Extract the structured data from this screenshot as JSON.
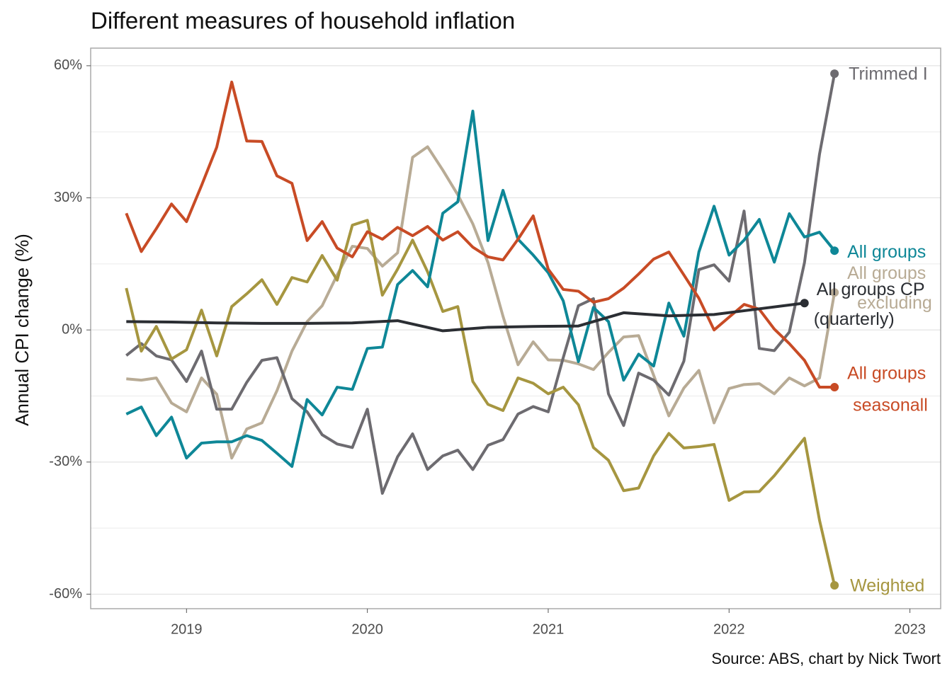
{
  "chart_data": {
    "type": "line",
    "title": "Different measures of household inflation",
    "y_label": "Annual CPI change (%)",
    "caption": "Source: ABS, chart by Nick Twort",
    "xlim": [
      2018.47,
      2023.17
    ],
    "xticks": [
      2019,
      2020,
      2021,
      2022,
      2023
    ],
    "ylim": [
      -63.3,
      64
    ],
    "yticks": [
      {
        "value": 60,
        "label": "60%"
      },
      {
        "value": 30,
        "label": "30%"
      },
      {
        "value": 0,
        "label": "0%"
      },
      {
        "value": -30,
        "label": "-30%"
      },
      {
        "value": -60,
        "label": "-60%"
      }
    ],
    "yminor": [
      45,
      15,
      -15,
      -45
    ],
    "grid": true,
    "series": [
      {
        "name": [
          "All groups",
          "excluding"
        ],
        "color": "#b8ab95",
        "x": [
          2018.667,
          2018.75,
          2018.833,
          2018.917,
          2019,
          2019.083,
          2019.167,
          2019.25,
          2019.333,
          2019.417,
          2019.5,
          2019.583,
          2019.667,
          2019.75,
          2019.833,
          2019.917,
          2020,
          2020.083,
          2020.167,
          2020.25,
          2020.333,
          2020.417,
          2020.5,
          2020.583,
          2020.667,
          2020.75,
          2020.833,
          2020.917,
          2021,
          2021.083,
          2021.167,
          2021.25,
          2021.333,
          2021.417,
          2021.5,
          2021.583,
          2021.667,
          2021.75,
          2021.833,
          2021.917,
          2022,
          2022.083,
          2022.167,
          2022.25,
          2022.333,
          2022.417,
          2022.5,
          2022.583
        ],
        "values": [
          -11.1,
          -11.4,
          -10.9,
          -16.6,
          -18.6,
          -10.9,
          -14.6,
          -29.1,
          -22.5,
          -21.1,
          -13.8,
          -4.8,
          1.9,
          5.5,
          12.5,
          19,
          18.5,
          14.5,
          17.5,
          39.2,
          41.6,
          36.3,
          30.7,
          24.1,
          15.3,
          3.1,
          -7.9,
          -2.7,
          -6.8,
          -6.9,
          -7.7,
          -9,
          -5.1,
          -1.6,
          -1.3,
          -10.3,
          -19.5,
          -13.2,
          -9.2,
          -21.1,
          -13.3,
          -12.4,
          -12.2,
          -14.5,
          -10.9,
          -12.7,
          -10.9,
          8.5
        ]
      },
      {
        "name": [
          "Trimmed I"
        ],
        "color": "#6d6b70",
        "x": [
          2018.667,
          2018.75,
          2018.833,
          2018.917,
          2019,
          2019.083,
          2019.167,
          2019.25,
          2019.333,
          2019.417,
          2019.5,
          2019.583,
          2019.667,
          2019.75,
          2019.833,
          2019.917,
          2020,
          2020.083,
          2020.167,
          2020.25,
          2020.333,
          2020.417,
          2020.5,
          2020.583,
          2020.667,
          2020.75,
          2020.833,
          2020.917,
          2021,
          2021.083,
          2021.167,
          2021.25,
          2021.333,
          2021.417,
          2021.5,
          2021.583,
          2021.667,
          2021.75,
          2021.833,
          2021.917,
          2022,
          2022.083,
          2022.167,
          2022.25,
          2022.333,
          2022.417,
          2022.5,
          2022.583
        ],
        "values": [
          -5.8,
          -3.1,
          -5.9,
          -6.8,
          -11.7,
          -4.8,
          -18,
          -18,
          -11.9,
          -6.9,
          -6.3,
          -15.6,
          -18.6,
          -23.8,
          -25.9,
          -26.7,
          -18,
          -37.1,
          -28.8,
          -23.6,
          -31.7,
          -28.6,
          -27.3,
          -31.7,
          -26.2,
          -24.9,
          -19.1,
          -17.4,
          -18.6,
          -6.3,
          5.5,
          7.1,
          -14.5,
          -21.7,
          -9.8,
          -11.4,
          -14.8,
          -7.1,
          13.7,
          14.8,
          11.1,
          27,
          -4.2,
          -4.7,
          -0.5,
          15.3,
          39.9,
          58.2
        ]
      },
      {
        "name": [
          "Weighted"
        ],
        "color": "#a69640",
        "x": [
          2018.667,
          2018.75,
          2018.833,
          2018.917,
          2019,
          2019.083,
          2019.167,
          2019.25,
          2019.333,
          2019.417,
          2019.5,
          2019.583,
          2019.667,
          2019.75,
          2019.833,
          2019.917,
          2020,
          2020.083,
          2020.167,
          2020.25,
          2020.333,
          2020.417,
          2020.5,
          2020.583,
          2020.667,
          2020.75,
          2020.833,
          2020.917,
          2021,
          2021.083,
          2021.167,
          2021.25,
          2021.333,
          2021.417,
          2021.5,
          2021.583,
          2021.667,
          2021.75,
          2021.833,
          2021.917,
          2022,
          2022.083,
          2022.167,
          2022.25,
          2022.333,
          2022.417,
          2022.5,
          2022.583
        ],
        "values": [
          9.5,
          -4.8,
          0.8,
          -6.6,
          -4.5,
          4.5,
          -5.9,
          5.3,
          8.2,
          11.4,
          5.8,
          11.9,
          10.9,
          16.9,
          11.3,
          23.8,
          24.9,
          7.9,
          13.8,
          20.4,
          13.2,
          4.2,
          5.3,
          -11.7,
          -16.9,
          -18.3,
          -10.9,
          -12.1,
          -14.5,
          -13,
          -17,
          -26.7,
          -29.6,
          -36.5,
          -35.9,
          -28.6,
          -23.5,
          -26.8,
          -26.5,
          -26,
          -38.7,
          -36.8,
          -36.7,
          -33.1,
          -28.9,
          -24.6,
          -43.2,
          -58
        ]
      },
      {
        "name": [
          "All groups"
        ],
        "color": "#0e8797",
        "x": [
          2018.667,
          2018.75,
          2018.833,
          2018.917,
          2019,
          2019.083,
          2019.167,
          2019.25,
          2019.333,
          2019.417,
          2019.5,
          2019.583,
          2019.667,
          2019.75,
          2019.833,
          2019.917,
          2020,
          2020.083,
          2020.167,
          2020.25,
          2020.333,
          2020.417,
          2020.5,
          2020.583,
          2020.667,
          2020.75,
          2020.833,
          2020.917,
          2021,
          2021.083,
          2021.167,
          2021.25,
          2021.333,
          2021.417,
          2021.5,
          2021.583,
          2021.667,
          2021.75,
          2021.833,
          2021.917,
          2022,
          2022.083,
          2022.167,
          2022.25,
          2022.333,
          2022.417,
          2022.5,
          2022.583
        ],
        "values": [
          -19.1,
          -17.5,
          -24,
          -19.8,
          -29.1,
          -25.7,
          -25.4,
          -25.4,
          -24,
          -25.1,
          -28,
          -31,
          -15.8,
          -19.3,
          -13,
          -13.5,
          -4.2,
          -3.9,
          10.3,
          13.5,
          9.8,
          26.5,
          29.1,
          49.7,
          20.3,
          31.7,
          20.6,
          17,
          13,
          6.6,
          -7.2,
          5.1,
          1.9,
          -11.4,
          -5.5,
          -8.2,
          6.1,
          -1.4,
          17.7,
          28.1,
          17,
          20.4,
          25.1,
          15.4,
          26.4,
          21.1,
          22.2,
          18
        ]
      },
      {
        "name": [
          "All groups",
          "seasonall"
        ],
        "color": "#c84b25",
        "x": [
          2018.667,
          2018.75,
          2018.833,
          2018.917,
          2019,
          2019.083,
          2019.167,
          2019.25,
          2019.333,
          2019.417,
          2019.5,
          2019.583,
          2019.667,
          2019.75,
          2019.833,
          2019.917,
          2020,
          2020.083,
          2020.167,
          2020.25,
          2020.333,
          2020.417,
          2020.5,
          2020.583,
          2020.667,
          2020.75,
          2020.833,
          2020.917,
          2021,
          2021.083,
          2021.167,
          2021.25,
          2021.333,
          2021.417,
          2021.5,
          2021.583,
          2021.667,
          2021.75,
          2021.833,
          2021.917,
          2022,
          2022.083,
          2022.167,
          2022.25,
          2022.333,
          2022.417,
          2022.5,
          2022.583
        ],
        "values": [
          26.5,
          17.8,
          23,
          28.6,
          24.6,
          32.8,
          41.5,
          56.3,
          42.9,
          42.8,
          35,
          33.3,
          20.3,
          24.6,
          18.6,
          16.6,
          22.3,
          20.6,
          23.3,
          21.4,
          23.5,
          20.4,
          22.3,
          18.8,
          16.6,
          15.9,
          20.6,
          25.9,
          13.8,
          9.2,
          8.8,
          6.3,
          7.1,
          9.5,
          12.7,
          16.1,
          17.7,
          12.5,
          7.2,
          0,
          2.9,
          5.8,
          4.7,
          0.2,
          -3.1,
          -6.9,
          -13,
          -13
        ]
      },
      {
        "name": [
          "All groups CP",
          "(quarterly)"
        ],
        "color": "#2b2e33",
        "x": [
          2018.667,
          2018.917,
          2019.167,
          2019.417,
          2019.667,
          2019.917,
          2020.167,
          2020.417,
          2020.667,
          2020.917,
          2021.167,
          2021.417,
          2021.667,
          2021.917,
          2022.167,
          2022.417
        ],
        "values": [
          1.9,
          1.8,
          1.6,
          1.5,
          1.5,
          1.6,
          2.1,
          -0.2,
          0.6,
          0.8,
          0.9,
          3.9,
          3.2,
          3.5,
          4.8,
          6.1
        ]
      }
    ]
  }
}
